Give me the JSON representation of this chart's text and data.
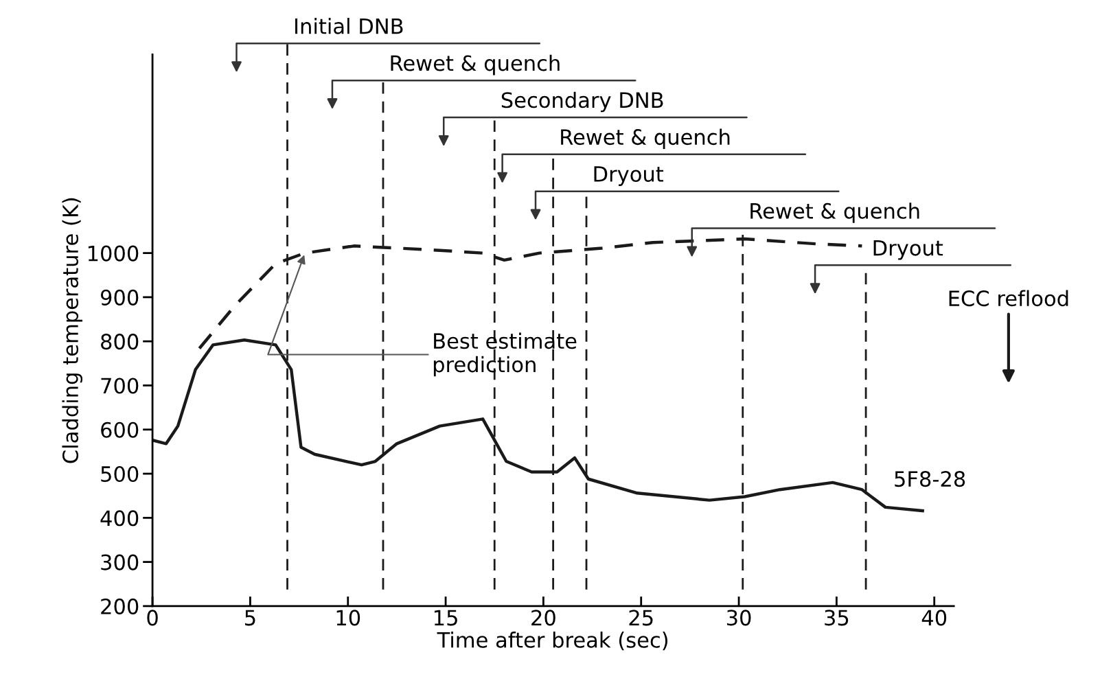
{
  "chart_data": {
    "type": "line",
    "xlabel": "Time after break (sec)",
    "ylabel": "Cladding temperature (K)",
    "xlim": [
      0,
      41
    ],
    "ylim": [
      200,
      1450
    ],
    "xticks": [
      0,
      5,
      10,
      15,
      20,
      25,
      30,
      35,
      40
    ],
    "yticks": [
      200,
      300,
      400,
      500,
      600,
      700,
      800,
      900,
      1000
    ],
    "grid": false,
    "series": [
      {
        "name": "5F8-28",
        "color": "#1a1a1a",
        "line_style": "solid",
        "x": [
          0,
          0.7,
          1.3,
          2.2,
          3.1,
          4.7,
          6.3,
          7.1,
          7.6,
          8.3,
          10.7,
          11.4,
          12.5,
          14.7,
          16.9,
          17.5,
          18.1,
          19.4,
          20.7,
          21.6,
          22.3,
          24.8,
          28.5,
          30.3,
          32.1,
          34.8,
          36.3,
          37.5,
          39.4
        ],
        "values": [
          576,
          568,
          608,
          736,
          792,
          803,
          792,
          736,
          560,
          544,
          520,
          528,
          568,
          608,
          624,
          576,
          528,
          504,
          504,
          536,
          488,
          456,
          440,
          448,
          464,
          480,
          464,
          424,
          416
        ]
      },
      {
        "color": "#1a1a1a",
        "line_style": "dashed",
        "x": [
          2.4,
          4.2,
          6.3,
          7.8,
          10.3,
          14.0,
          16.9,
          18.0,
          19.8,
          23.0,
          25.6,
          30.3,
          33.9,
          36.3
        ],
        "values": [
          784,
          880,
          976,
          1000,
          1016,
          1008,
          1000,
          984,
          1000,
          1011,
          1024,
          1032,
          1021,
          1016
        ]
      }
    ],
    "ref_lines": [
      {
        "axis": "x",
        "value": 6.9,
        "label": "Initial DNB",
        "line_style": "dashed"
      },
      {
        "axis": "x",
        "value": 11.8,
        "label": "Rewet & quench",
        "line_style": "dashed"
      },
      {
        "axis": "x",
        "value": 17.5,
        "label": "Secondary DNB",
        "line_style": "dashed"
      },
      {
        "axis": "x",
        "value": 20.5,
        "label": "Rewet & quench",
        "line_style": "dashed"
      },
      {
        "axis": "x",
        "value": 22.2,
        "label": "Dryout",
        "line_style": "dashed"
      },
      {
        "axis": "x",
        "value": 30.2,
        "label": "Rewet & quench",
        "line_style": "dashed"
      },
      {
        "axis": "x",
        "value": 36.5,
        "label": "Dryout",
        "line_style": "dashed"
      }
    ],
    "annotations": [
      {
        "text": "Best estimate\nprediction",
        "x": 7.8,
        "y": 1000
      },
      "ECC reflood"
    ]
  }
}
